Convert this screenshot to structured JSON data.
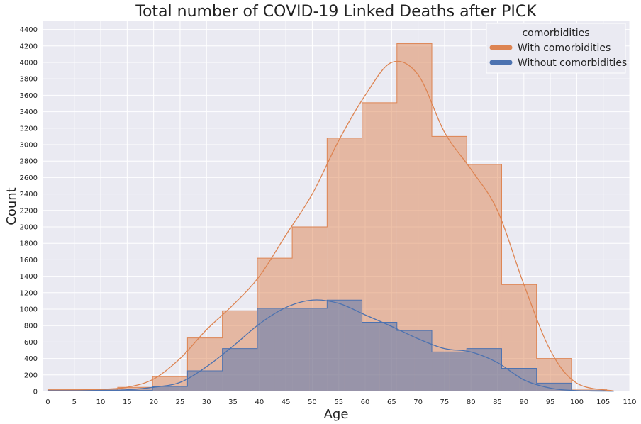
{
  "chart_data": {
    "type": "histogram",
    "title": "Total number of COVID-19 Linked Deaths after PICK",
    "xlabel": "Age",
    "ylabel": "Count",
    "xlim": [
      -1,
      110
    ],
    "ylim": [
      0,
      4500
    ],
    "xticks": [
      0,
      5,
      10,
      15,
      20,
      25,
      30,
      35,
      40,
      45,
      50,
      55,
      60,
      65,
      70,
      75,
      80,
      85,
      90,
      95,
      100,
      105,
      110
    ],
    "yticks": [
      0,
      200,
      400,
      600,
      800,
      1000,
      1200,
      1400,
      1600,
      1800,
      2000,
      2200,
      2400,
      2600,
      2800,
      3000,
      3200,
      3400,
      3600,
      3800,
      4000,
      4200,
      4400
    ],
    "grid": true,
    "legend": {
      "title": "comorbidities",
      "placement": "top-right",
      "entries": [
        "With comorbidities",
        "Without comorbidities"
      ]
    },
    "series": [
      {
        "name": "With comorbidities",
        "color": "#dd8452",
        "bin_edges": [
          0,
          6.6,
          13.2,
          19.8,
          26.4,
          33,
          39.6,
          46.2,
          52.8,
          59.4,
          66,
          72.6,
          79.2,
          85.8,
          92.4,
          99,
          105.6
        ],
        "counts": [
          20,
          20,
          50,
          180,
          650,
          980,
          1620,
          2000,
          3080,
          3510,
          4230,
          3100,
          2760,
          1300,
          400,
          30
        ],
        "kde": [
          [
            0,
            15
          ],
          [
            5,
            18
          ],
          [
            10,
            25
          ],
          [
            15,
            50
          ],
          [
            20,
            150
          ],
          [
            25,
            400
          ],
          [
            30,
            750
          ],
          [
            35,
            1050
          ],
          [
            40,
            1400
          ],
          [
            45,
            1900
          ],
          [
            50,
            2400
          ],
          [
            55,
            3050
          ],
          [
            60,
            3600
          ],
          [
            65,
            4000
          ],
          [
            70,
            3850
          ],
          [
            75,
            3150
          ],
          [
            80,
            2700
          ],
          [
            85,
            2200
          ],
          [
            90,
            1300
          ],
          [
            95,
            500
          ],
          [
            100,
            100
          ],
          [
            107,
            5
          ]
        ]
      },
      {
        "name": "Without comorbidities",
        "color": "#4c72b0",
        "bin_edges": [
          0,
          3.3,
          6.6,
          9.9,
          13.2,
          16.5,
          19.8,
          23.1,
          26.4,
          29.7,
          33,
          36.3,
          39.6,
          42.9,
          46.2,
          49.5,
          52.8,
          56.1,
          59.4,
          62.7,
          66,
          69.3,
          72.6,
          75.9,
          79.2,
          82.5,
          85.8,
          89.1,
          92.4,
          95.7,
          99,
          102.3,
          105.6
        ],
        "counts": [
          15,
          15,
          15,
          15,
          15,
          15,
          60,
          60,
          250,
          250,
          520,
          520,
          1010,
          1010,
          1010,
          1010,
          1110,
          1110,
          840,
          840,
          740,
          740,
          480,
          480,
          520,
          520,
          280,
          280,
          100,
          100,
          10,
          10
        ],
        "kde": [
          [
            0,
            8
          ],
          [
            10,
            10
          ],
          [
            15,
            20
          ],
          [
            20,
            50
          ],
          [
            25,
            110
          ],
          [
            30,
            300
          ],
          [
            35,
            550
          ],
          [
            40,
            820
          ],
          [
            45,
            1020
          ],
          [
            50,
            1110
          ],
          [
            55,
            1070
          ],
          [
            60,
            930
          ],
          [
            65,
            790
          ],
          [
            70,
            640
          ],
          [
            75,
            520
          ],
          [
            80,
            480
          ],
          [
            85,
            350
          ],
          [
            90,
            140
          ],
          [
            95,
            40
          ],
          [
            100,
            10
          ],
          [
            107,
            2
          ]
        ]
      }
    ]
  }
}
